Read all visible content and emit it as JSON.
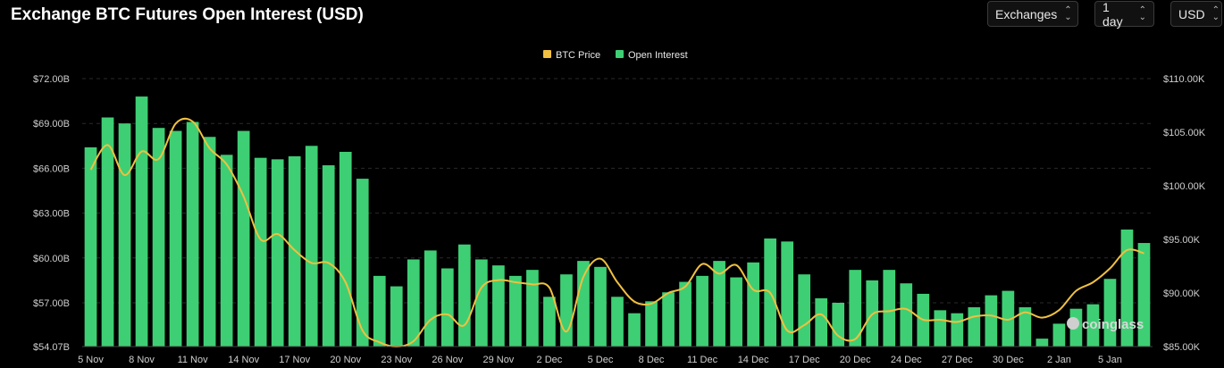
{
  "header": {
    "title": "Exchange BTC Futures Open Interest (USD)",
    "exchanges_label": "Exchanges",
    "interval_label": "1 day",
    "currency_label": "USD"
  },
  "watermark": "coinglass",
  "colors": {
    "bar": "#3ecf74",
    "line": "#f0c040",
    "grid": "#2a2a2a",
    "background": "#000000"
  },
  "chart_data": {
    "type": "bar",
    "title": "Exchange BTC Futures Open Interest (USD)",
    "legend_position": "top-center",
    "grid": "horizontal dashed",
    "x_tick_labels": [
      "5 Nov",
      "8 Nov",
      "11 Nov",
      "14 Nov",
      "17 Nov",
      "20 Nov",
      "23 Nov",
      "26 Nov",
      "29 Nov",
      "2 Dec",
      "5 Dec",
      "8 Dec",
      "11 Dec",
      "14 Dec",
      "17 Dec",
      "20 Dec",
      "24 Dec",
      "27 Dec",
      "30 Dec",
      "2 Jan",
      "5 Jan"
    ],
    "y_left_ticks": [
      "$54.07B",
      "$57.00B",
      "$60.00B",
      "$63.00B",
      "$66.00B",
      "$69.00B",
      "$72.00B"
    ],
    "y_left_lim": [
      54.07,
      72.0
    ],
    "y_right_ticks": [
      "$85.00K",
      "$90.00K",
      "$95.00K",
      "$100.00K",
      "$105.00K",
      "$110.00K"
    ],
    "y_right_lim": [
      85.0,
      110.0
    ],
    "legend": [
      "BTC Price",
      "Open Interest"
    ],
    "series": [
      {
        "name": "Open Interest",
        "kind": "bar",
        "axis": "left",
        "unit": "USD billions",
        "values": [
          67.4,
          69.4,
          69.0,
          70.8,
          68.7,
          68.5,
          69.1,
          68.1,
          66.9,
          68.5,
          66.7,
          66.6,
          66.8,
          67.5,
          66.2,
          67.1,
          65.3,
          58.8,
          58.1,
          59.9,
          60.5,
          59.3,
          60.9,
          59.9,
          59.5,
          58.8,
          59.2,
          57.4,
          58.9,
          59.8,
          59.4,
          57.4,
          56.3,
          57.1,
          57.7,
          58.4,
          58.8,
          59.8,
          58.7,
          59.7,
          61.3,
          61.1,
          58.9,
          57.3,
          57.0,
          59.2,
          58.5,
          59.2,
          58.3,
          57.6,
          56.5,
          56.3,
          56.7,
          57.5,
          57.8,
          56.7,
          54.6,
          55.6,
          56.6,
          56.9,
          58.6,
          61.9,
          61.0
        ]
      },
      {
        "name": "BTC Price",
        "kind": "line",
        "axis": "right",
        "unit": "USD thousands",
        "values": [
          101.5,
          103.8,
          101.0,
          103.2,
          102.5,
          105.8,
          106.0,
          103.5,
          102.0,
          99.0,
          95.0,
          95.5,
          94.0,
          92.8,
          92.8,
          91.0,
          86.5,
          85.4,
          85.0,
          85.5,
          87.5,
          88.0,
          87.0,
          90.5,
          91.2,
          91.0,
          90.8,
          90.5,
          86.4,
          91.5,
          93.2,
          91.0,
          89.2,
          89.0,
          90.0,
          90.6,
          92.7,
          91.8,
          92.6,
          90.3,
          90.0,
          86.5,
          87.0,
          88.0,
          86.0,
          85.7,
          88.0,
          88.3,
          88.5,
          87.5,
          87.5,
          87.3,
          87.8,
          87.9,
          87.5,
          88.2,
          87.7,
          88.4,
          90.2,
          91.0,
          92.3,
          94.0,
          93.7
        ]
      }
    ]
  }
}
